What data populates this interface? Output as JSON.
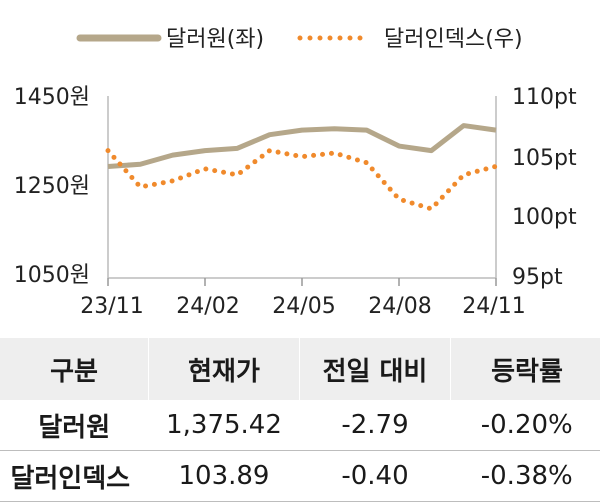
{
  "chart_data": {
    "type": "line",
    "series": [
      {
        "name": "달러원(좌)",
        "axis": "left",
        "style": "solid",
        "color": "#b5a78a",
        "x": [
          "23/11",
          "23/12",
          "24/01",
          "24/02",
          "24/03",
          "24/04",
          "24/05",
          "24/06",
          "24/07",
          "24/08",
          "24/09",
          "24/10",
          "24/11"
        ],
        "values": [
          1295,
          1300,
          1320,
          1330,
          1335,
          1365,
          1375,
          1378,
          1375,
          1340,
          1330,
          1385,
          1375
        ]
      },
      {
        "name": "달러인덱스(우)",
        "axis": "right",
        "style": "dotted",
        "color": "#f08a2c",
        "x": [
          "23/11",
          "23/12",
          "24/01",
          "24/02",
          "24/03",
          "24/04",
          "24/05",
          "24/06",
          "24/07",
          "24/08",
          "24/09",
          "24/10",
          "24/11"
        ],
        "values": [
          105.5,
          102.5,
          103,
          104,
          103.5,
          105.5,
          105,
          105.3,
          104.5,
          101.5,
          100.7,
          103.5,
          104.2
        ]
      }
    ],
    "y_left": {
      "ticks": [
        "1450원",
        "1250원",
        "1050원"
      ],
      "lim": [
        1050,
        1450
      ]
    },
    "y_right": {
      "ticks": [
        "110pt",
        "105pt",
        "100pt",
        "95pt"
      ],
      "lim": [
        95,
        110
      ]
    },
    "x_ticks": [
      "23/11",
      "24/02",
      "24/05",
      "24/08",
      "24/11"
    ],
    "legend": "top"
  },
  "table": {
    "headers": [
      "구분",
      "현재가",
      "전일 대비",
      "등락률"
    ],
    "rows": [
      {
        "name": "달러원",
        "price": "1,375.42",
        "change": "-2.79",
        "rate": "-0.20%"
      },
      {
        "name": "달러인덱스",
        "price": "103.89",
        "change": "-0.40",
        "rate": "-0.38%"
      }
    ]
  }
}
